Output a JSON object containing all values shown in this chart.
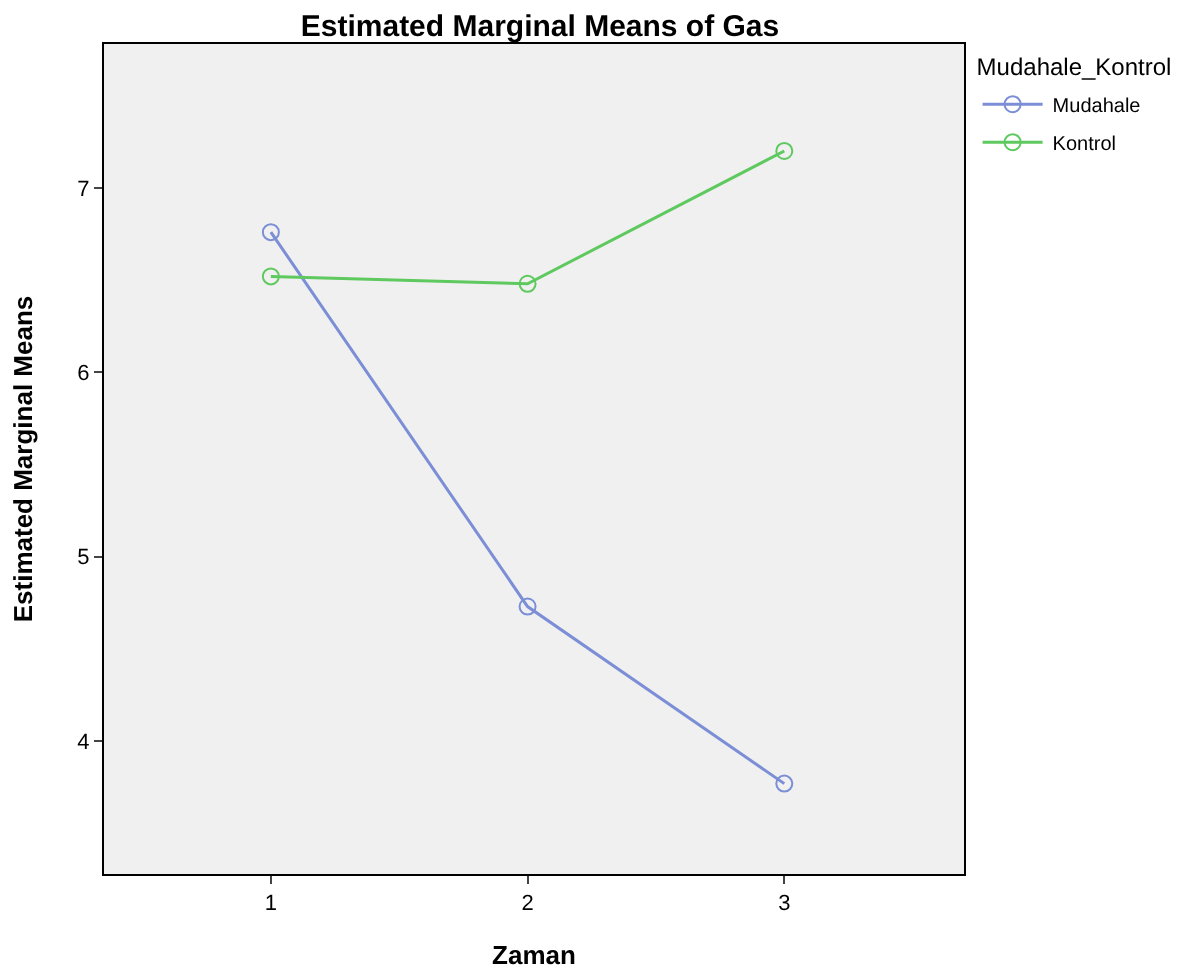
{
  "chart_data": {
    "type": "line",
    "title": "Estimated Marginal Means of Gas",
    "xlabel": "Zaman",
    "ylabel": "Estimated Marginal Means",
    "legend_title": "Mudahale_Kontrol",
    "x": [
      1,
      2,
      3
    ],
    "xlim": [
      0.35,
      3.7
    ],
    "xticks": [
      1,
      2,
      3
    ],
    "ylim": [
      3.28,
      7.78
    ],
    "yticks": [
      4,
      5,
      6,
      7
    ],
    "series": [
      {
        "name": "Mudahale",
        "color": "#7b8ed6",
        "values": [
          6.76,
          4.73,
          3.77
        ]
      },
      {
        "name": "Kontrol",
        "color": "#5ec95e",
        "values": [
          6.52,
          6.48,
          7.2
        ]
      }
    ],
    "marker": "circle",
    "grid": false,
    "legend": "top right"
  }
}
